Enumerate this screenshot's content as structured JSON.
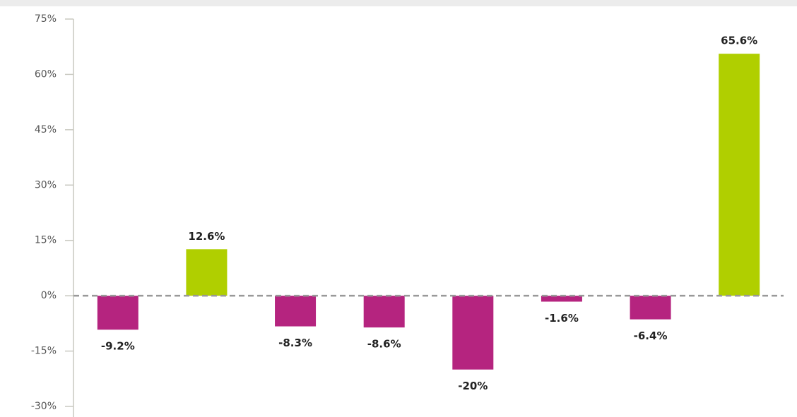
{
  "chart_data": {
    "type": "bar",
    "categories": [
      null,
      null,
      null,
      null,
      null,
      null,
      null,
      null
    ],
    "values": [
      -9.2,
      12.6,
      -8.3,
      -8.6,
      -20,
      -1.6,
      -6.4,
      65.6
    ],
    "value_labels": [
      "-9.2%",
      "12.6%",
      "-8.3%",
      "-8.6%",
      "-20%",
      "-1.6%",
      "-6.4%",
      "65.6%"
    ],
    "colors": [
      "#b5247f",
      "#b0cf00",
      "#b5247f",
      "#b5247f",
      "#b5247f",
      "#b5247f",
      "#b5247f",
      "#b0cf00"
    ],
    "ylim": [
      -30,
      75
    ],
    "yticks": [
      {
        "value": -30,
        "label": "-30%"
      },
      {
        "value": -15,
        "label": "-15%"
      },
      {
        "value": 0,
        "label": "0%"
      },
      {
        "value": 15,
        "label": "15%"
      },
      {
        "value": 30,
        "label": "30%"
      },
      {
        "value": 45,
        "label": "45%"
      },
      {
        "value": 60,
        "label": "60%"
      },
      {
        "value": 75,
        "label": "75%"
      }
    ]
  }
}
